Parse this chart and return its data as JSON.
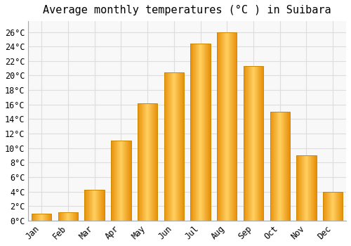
{
  "title": "Average monthly temperatures (°C ) in Suibara",
  "months": [
    "Jan",
    "Feb",
    "Mar",
    "Apr",
    "May",
    "Jun",
    "Jul",
    "Aug",
    "Sep",
    "Oct",
    "Nov",
    "Dec"
  ],
  "values": [
    1,
    1.2,
    4.3,
    11,
    16.2,
    20.4,
    24.4,
    26,
    21.3,
    15,
    9,
    4
  ],
  "bar_color_left": "#E8900A",
  "bar_color_mid": "#FFD060",
  "bar_color_right": "#E8900A",
  "background_color": "#FFFFFF",
  "grid_color": "#DDDDDD",
  "plot_bg_color": "#F8F8F8",
  "ylim": [
    0,
    27.5
  ],
  "yticks": [
    0,
    2,
    4,
    6,
    8,
    10,
    12,
    14,
    16,
    18,
    20,
    22,
    24,
    26
  ],
  "ytick_labels": [
    "0°C",
    "2°C",
    "4°C",
    "6°C",
    "8°C",
    "10°C",
    "12°C",
    "14°C",
    "16°C",
    "18°C",
    "20°C",
    "22°C",
    "24°C",
    "26°C"
  ],
  "title_fontsize": 11,
  "tick_fontsize": 8.5,
  "bar_width": 0.75
}
